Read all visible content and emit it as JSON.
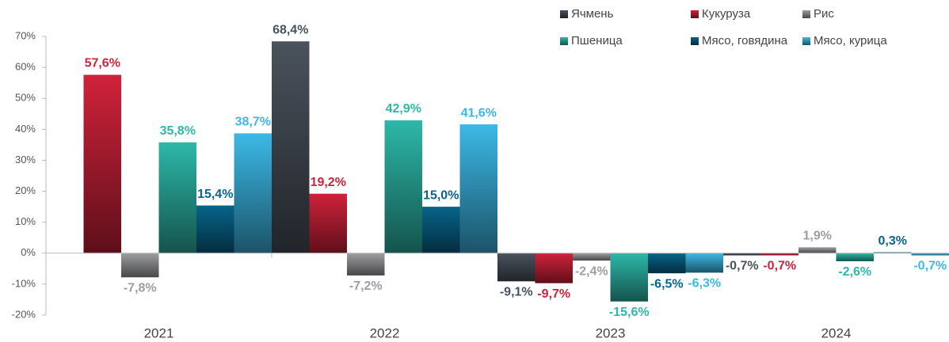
{
  "chart_data": {
    "type": "bar",
    "categories": [
      "2021",
      "2022",
      "2023",
      "2024"
    ],
    "ylim": [
      -20,
      70
    ],
    "yticks": [
      {
        "value": -20,
        "label": "-20%"
      },
      {
        "value": -10,
        "label": "-10%"
      },
      {
        "value": 0,
        "label": "0%"
      },
      {
        "value": 10,
        "label": "10%"
      },
      {
        "value": 20,
        "label": "20%"
      },
      {
        "value": 30,
        "label": "30%"
      },
      {
        "value": 40,
        "label": "40%"
      },
      {
        "value": 50,
        "label": "50%"
      },
      {
        "value": 60,
        "label": "60%"
      },
      {
        "value": 70,
        "label": "70%"
      }
    ],
    "legend": "top-right",
    "series": [
      {
        "name": "Ячмень",
        "color": "#4a525c",
        "values": [
          null,
          68.4,
          -9.1,
          -0.7
        ],
        "value_labels": [
          null,
          "68,4%",
          "-9,1%",
          "-0,7%"
        ]
      },
      {
        "name": "Кукуруза",
        "color": "#d0223a",
        "values": [
          57.6,
          19.2,
          -9.7,
          -0.7
        ],
        "value_labels": [
          "57,6%",
          "19,2%",
          "-9,7%",
          "-0,7%"
        ]
      },
      {
        "name": "Рис",
        "color": "#9d9ea2",
        "values": [
          -7.8,
          -7.2,
          -2.4,
          1.9
        ],
        "value_labels": [
          "-7,8%",
          "-7,2%",
          "-2,4%",
          "1,9%"
        ]
      },
      {
        "name": "Пшеница",
        "color": "#2db8a8",
        "values": [
          35.8,
          42.9,
          -15.6,
          -2.6
        ],
        "value_labels": [
          "35,8%",
          "42,9%",
          "-15,6%",
          "-2,6%"
        ]
      },
      {
        "name": "Мясо, говядина",
        "color": "#07648a",
        "values": [
          15.4,
          15.0,
          -6.5,
          0.3
        ],
        "value_labels": [
          "15,4%",
          "15,0%",
          "-6,5%",
          "0,3%"
        ]
      },
      {
        "name": "Мясо, курица",
        "color": "#3cb9e6",
        "values": [
          38.7,
          41.6,
          -6.3,
          -0.7
        ],
        "value_labels": [
          "38,7%",
          "41,6%",
          "-6,3%",
          "-0,7%"
        ]
      }
    ]
  }
}
